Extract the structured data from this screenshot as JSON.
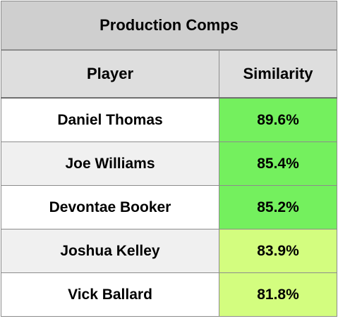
{
  "table": {
    "title": "Production Comps",
    "headers": {
      "player": "Player",
      "similarity": "Similarity"
    },
    "rows": [
      {
        "player": "Daniel Thomas",
        "similarity": "89.6%",
        "player_bg": "#ffffff",
        "similarity_bg": "#74f05e"
      },
      {
        "player": "Joe Williams",
        "similarity": "85.4%",
        "player_bg": "#f0f0f0",
        "similarity_bg": "#74f05e"
      },
      {
        "player": "Devontae Booker",
        "similarity": "85.2%",
        "player_bg": "#ffffff",
        "similarity_bg": "#74f05e"
      },
      {
        "player": "Joshua Kelley",
        "similarity": "83.9%",
        "player_bg": "#f0f0f0",
        "similarity_bg": "#d3fd7f"
      },
      {
        "player": "Vick Ballard",
        "similarity": "81.8%",
        "player_bg": "#ffffff",
        "similarity_bg": "#d3fd7f"
      }
    ]
  }
}
